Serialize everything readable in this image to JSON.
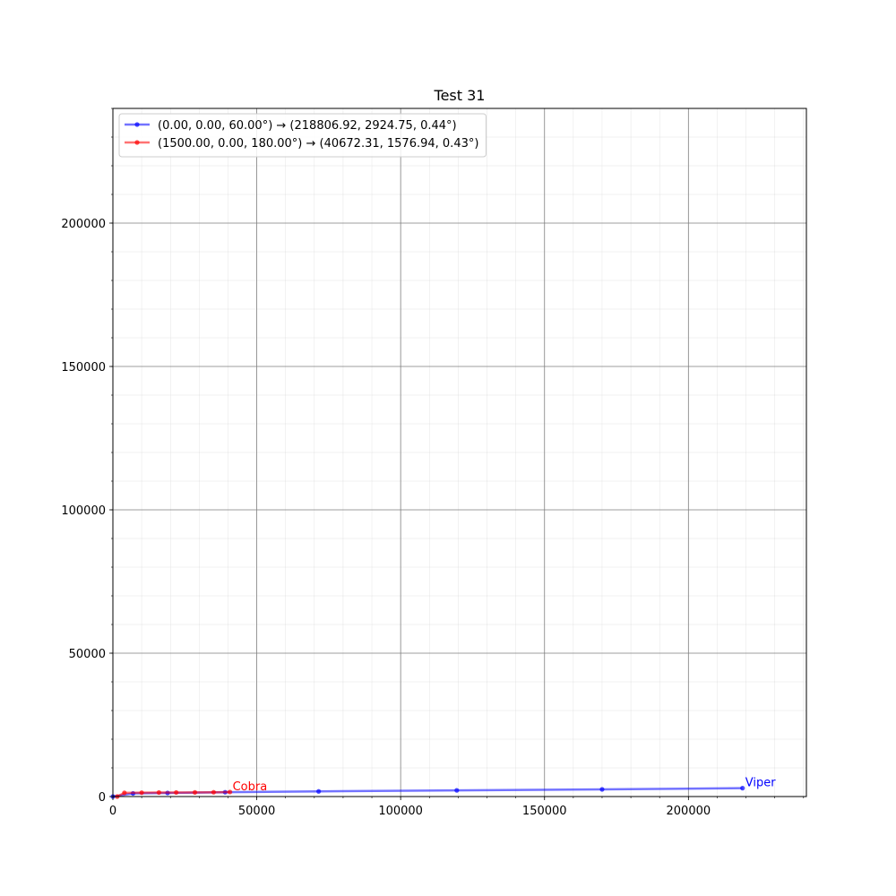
{
  "chart_data": {
    "type": "line",
    "title": "Test 31",
    "xlabel": "",
    "ylabel": "",
    "xlim": [
      0,
      241000
    ],
    "ylim": [
      0,
      240000
    ],
    "x_ticks": [
      0,
      50000,
      100000,
      150000,
      200000
    ],
    "x_tick_labels": [
      "0",
      "50000",
      "100000",
      "150000",
      "200000"
    ],
    "y_ticks": [
      0,
      50000,
      100000,
      150000,
      200000
    ],
    "y_tick_labels": [
      "0",
      "50000",
      "100000",
      "150000",
      "200000"
    ],
    "grid": true,
    "minor_grid": true,
    "legend_position": "top-left",
    "series": [
      {
        "name": "(0.00, 0.00, 60.00°) → (218806.92, 2924.75, 0.44°)",
        "color": "#0000ff",
        "end_label": "Viper",
        "x": [
          0,
          7000,
          19000,
          39000,
          71500,
          119500,
          170000,
          218806.92
        ],
        "y": [
          0,
          1100,
          1250,
          1500,
          1800,
          2150,
          2500,
          2924.75
        ]
      },
      {
        "name": "(1500.00, 0.00, 180.00°) → (40672.31, 1576.94, 0.43°)",
        "color": "#ff0000",
        "end_label": "Cobra",
        "x": [
          1500,
          4000,
          10000,
          16000,
          22000,
          28500,
          35000,
          40672.31
        ],
        "y": [
          0,
          1300,
          1350,
          1400,
          1420,
          1450,
          1500,
          1576.94
        ]
      }
    ]
  }
}
